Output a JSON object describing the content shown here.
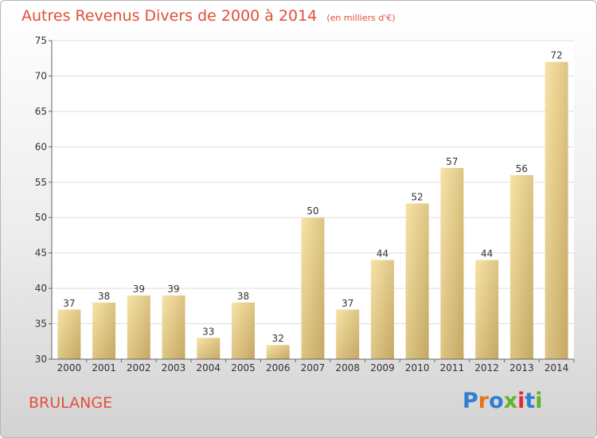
{
  "header": {
    "title": "Autres Revenus Divers de 2000 à 2014",
    "subtitle": "(en milliers d'€)"
  },
  "footer": {
    "town": "BRULANGE",
    "logo_letters": [
      "P",
      "r",
      "o",
      "x",
      "i",
      "t",
      "i"
    ]
  },
  "colors": {
    "title": "#e0503a",
    "bar_light": "#f5de9b",
    "bar_dark": "#c6aa66",
    "grid": "#dddddd",
    "axis": "#666666",
    "text": "#333333"
  },
  "chart_data": {
    "type": "bar",
    "title": "Autres Revenus Divers de 2000 à 2014",
    "categories": [
      "2000",
      "2001",
      "2002",
      "2003",
      "2004",
      "2005",
      "2006",
      "2007",
      "2008",
      "2009",
      "2010",
      "2011",
      "2012",
      "2013",
      "2014"
    ],
    "values": [
      37,
      38,
      39,
      39,
      33,
      38,
      32,
      50,
      37,
      44,
      52,
      57,
      44,
      56,
      72
    ],
    "ylim": [
      30,
      75
    ],
    "yticks": [
      30,
      35,
      40,
      45,
      50,
      55,
      60,
      65,
      70,
      75
    ],
    "grid": true,
    "data_labels": true
  }
}
